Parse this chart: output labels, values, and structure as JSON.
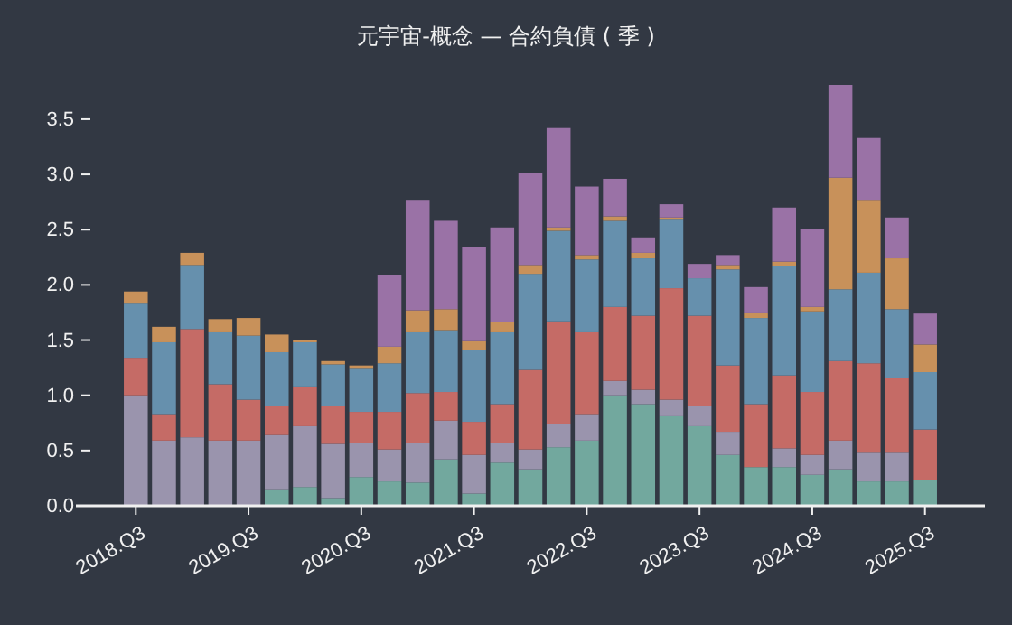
{
  "chart_data": {
    "type": "bar",
    "title": "元宇宙-概念 — 合約負債 ( 季 )",
    "stacked": true,
    "grid": false,
    "ylim": [
      0,
      3.81
    ],
    "categories": [
      "2018.Q3",
      null,
      null,
      null,
      "2019.Q3",
      null,
      null,
      null,
      "2020.Q3",
      null,
      null,
      null,
      "2021.Q3",
      null,
      null,
      null,
      "2022.Q3",
      null,
      null,
      null,
      "2023.Q3",
      null,
      null,
      null,
      "2024.Q3",
      null,
      null,
      null,
      "2025.Q3"
    ],
    "yticks": [
      {
        "value": 0,
        "label": "0.0"
      },
      {
        "value": 0.5,
        "label": "0.5"
      },
      {
        "value": 1,
        "label": "1.0"
      },
      {
        "value": 1.5,
        "label": "1.5"
      },
      {
        "value": 2,
        "label": "2.0"
      },
      {
        "value": 2.5,
        "label": "2.5"
      },
      {
        "value": 3,
        "label": "3.0"
      },
      {
        "value": 3.5,
        "label": "3.5"
      }
    ],
    "series": [
      {
        "color": "#72a89e",
        "values": [
          0,
          0,
          0,
          0,
          0,
          0.15,
          0.17,
          0.07,
          0.26,
          0.22,
          0.21,
          0.42,
          0.11,
          0.39,
          0.33,
          0.53,
          0.59,
          1.0,
          0.92,
          0.81,
          0.72,
          0.46,
          0.35,
          0.35,
          0.28,
          0.33,
          0.22,
          0.22,
          0.23
        ]
      },
      {
        "color": "#9a94ad",
        "values": [
          1.0,
          0.59,
          0.62,
          0.59,
          0.59,
          0.49,
          0.55,
          0.49,
          0.31,
          0.29,
          0.36,
          0.35,
          0.35,
          0.18,
          0.18,
          0.21,
          0.24,
          0.13,
          0.13,
          0.15,
          0.18,
          0.21,
          0,
          0.17,
          0.18,
          0.26,
          0.26,
          0.26,
          0
        ]
      },
      {
        "color": "#c56b66",
        "values": [
          0.34,
          0.24,
          0.98,
          0.51,
          0.37,
          0.26,
          0.36,
          0.34,
          0.28,
          0.34,
          0.45,
          0.26,
          0.3,
          0.35,
          0.72,
          0.93,
          0.74,
          0.67,
          0.67,
          1.01,
          0.82,
          0.6,
          0.57,
          0.66,
          0.57,
          0.72,
          0.81,
          0.68,
          0.46
        ]
      },
      {
        "color": "#6690ad",
        "values": [
          0.49,
          0.65,
          0.58,
          0.47,
          0.58,
          0.49,
          0.4,
          0.38,
          0.39,
          0.44,
          0.55,
          0.56,
          0.65,
          0.65,
          0.87,
          0.82,
          0.66,
          0.78,
          0.52,
          0.62,
          0.34,
          0.87,
          0.78,
          0.99,
          0.73,
          0.65,
          0.82,
          0.62,
          0.52
        ]
      },
      {
        "color": "#c8915a",
        "values": [
          0.11,
          0.14,
          0.11,
          0.12,
          0.16,
          0.16,
          0.02,
          0.03,
          0.03,
          0.15,
          0.2,
          0.19,
          0.08,
          0.09,
          0.08,
          0.03,
          0.04,
          0.04,
          0.05,
          0.02,
          0,
          0.04,
          0.05,
          0.04,
          0.04,
          1.01,
          0.66,
          0.46,
          0.25
        ]
      },
      {
        "color": "#9a72a6",
        "values": [
          0,
          0,
          0,
          0,
          0,
          0,
          0,
          0,
          0,
          0.65,
          1.0,
          0.8,
          0.85,
          0.86,
          0.83,
          0.9,
          0.62,
          0.34,
          0.14,
          0.12,
          0.13,
          0.09,
          0.23,
          0.49,
          0.71,
          0.84,
          0.56,
          0.37,
          0.28
        ]
      }
    ]
  }
}
